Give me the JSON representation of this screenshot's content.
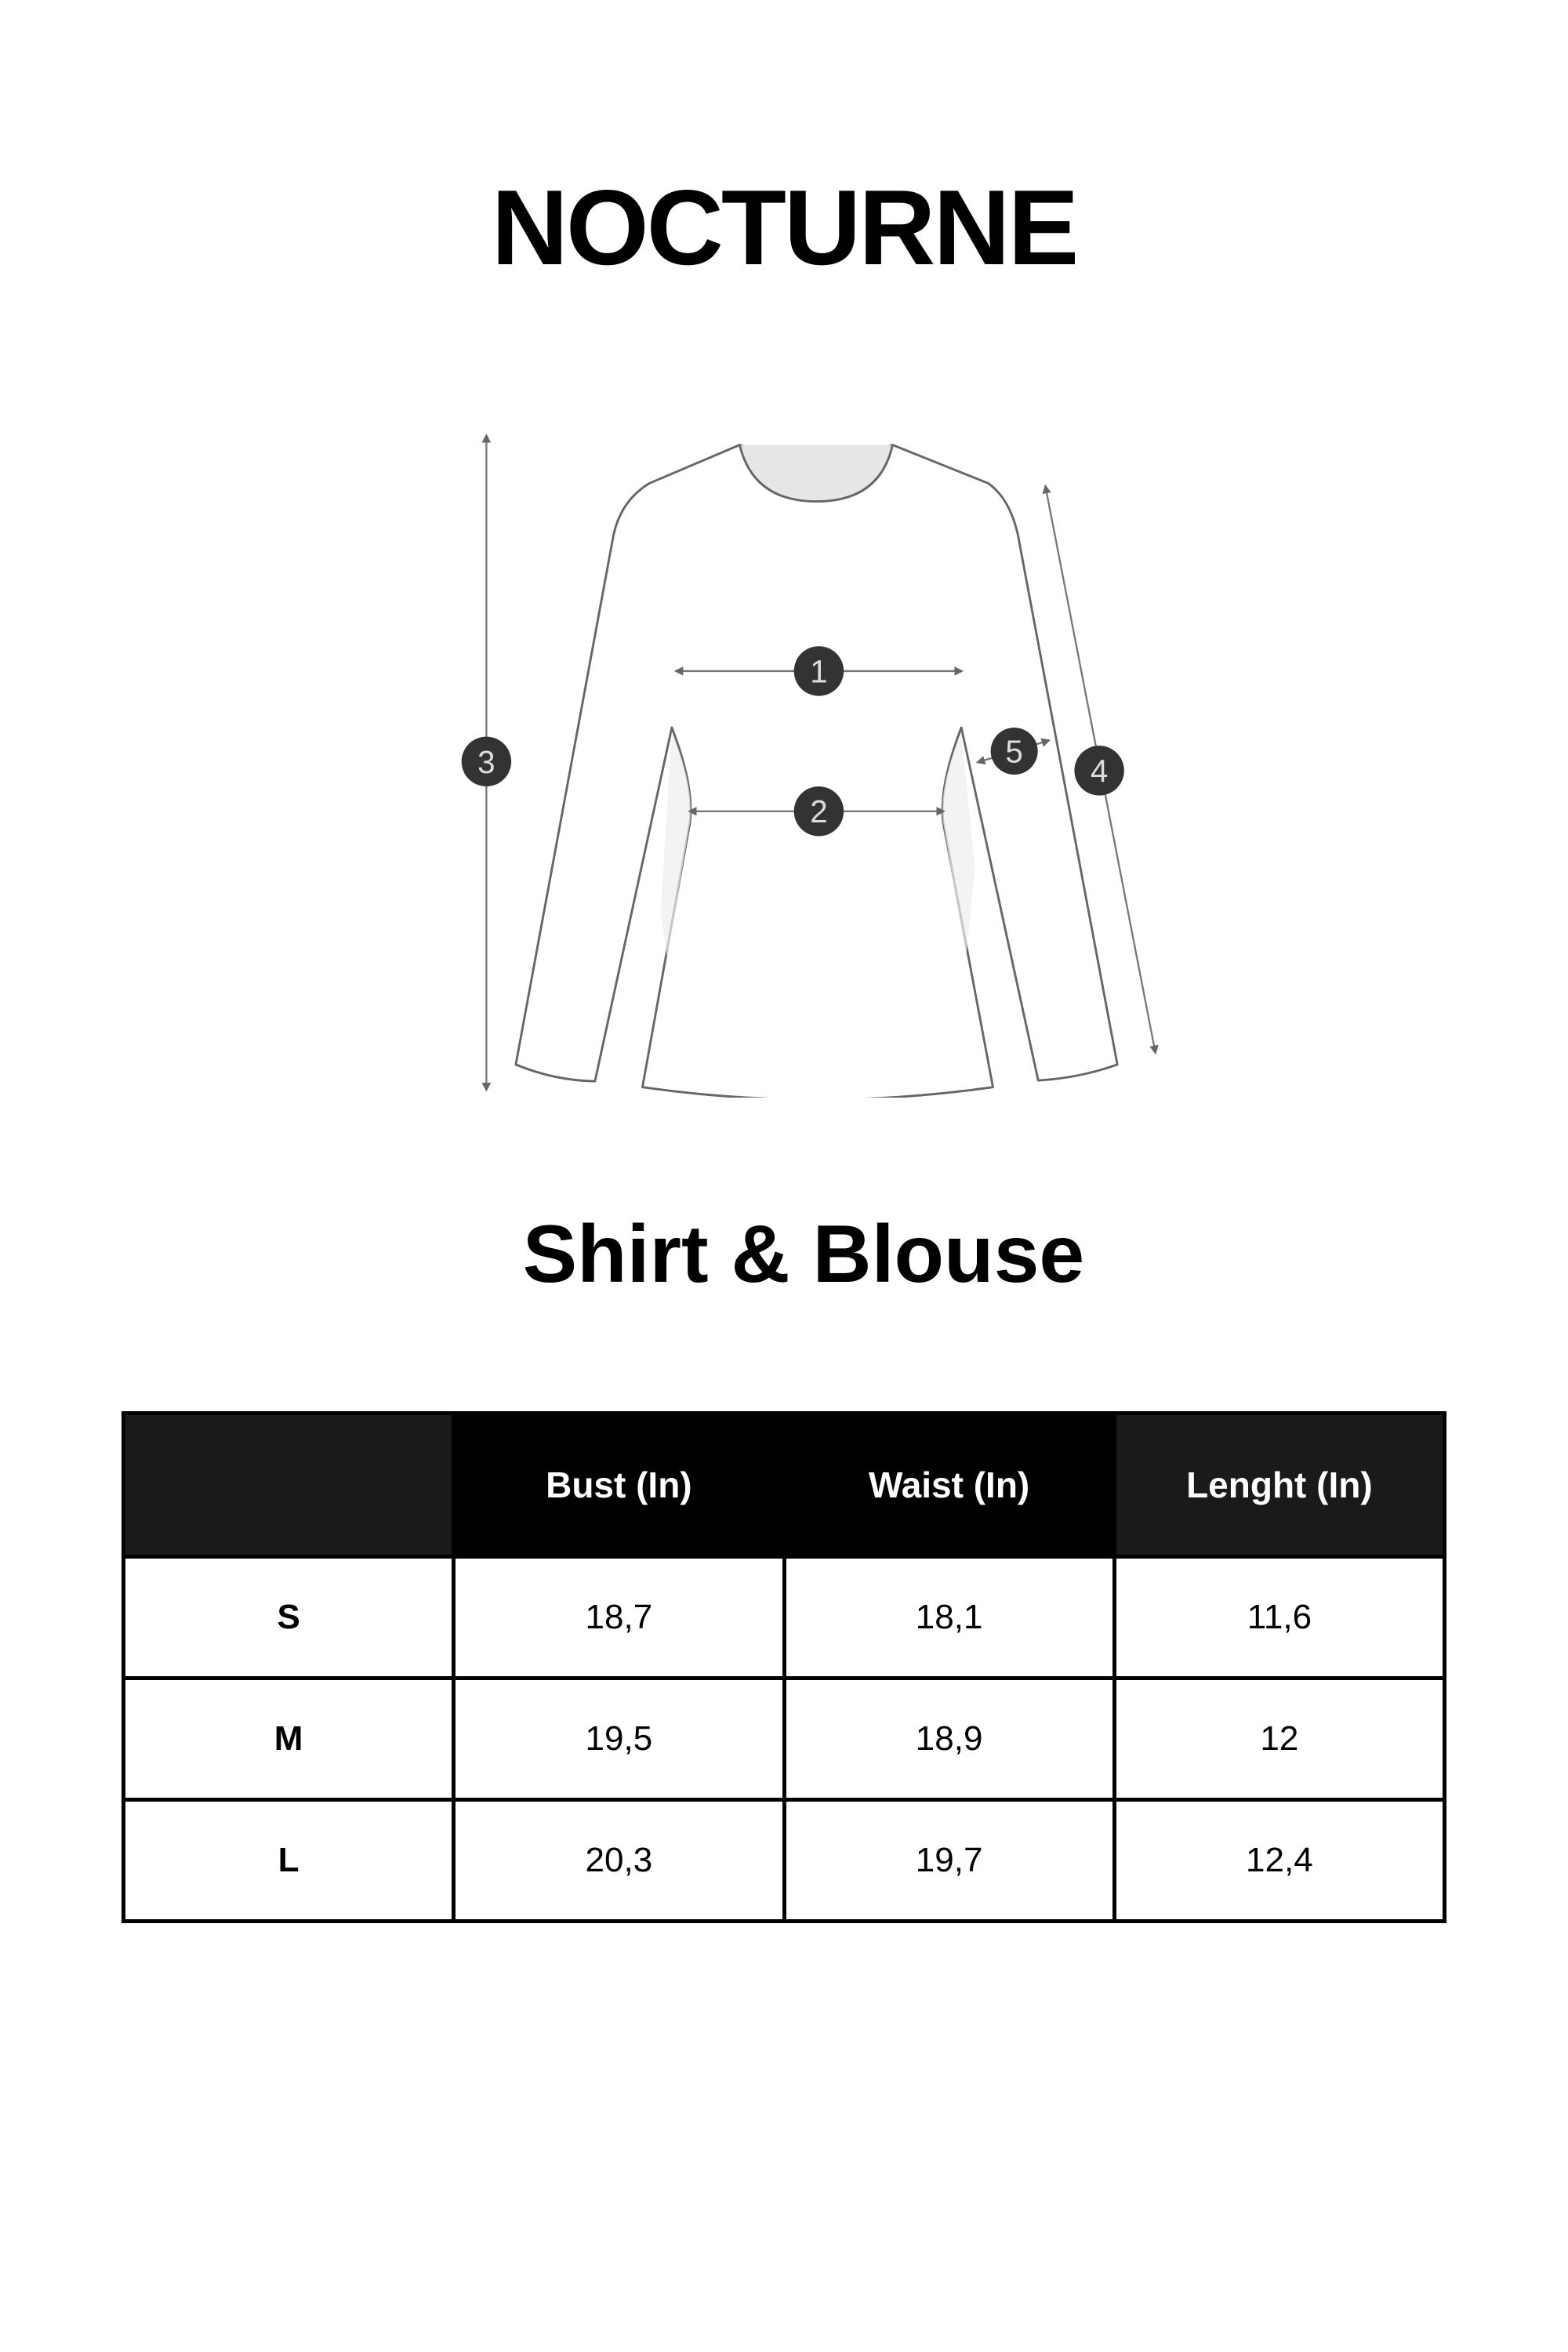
{
  "brand": "NOCTURNE",
  "diagram": {
    "markers": [
      "1",
      "2",
      "3",
      "4",
      "5"
    ],
    "line_color": "#777777",
    "marker_color": "#333333"
  },
  "subtitle": "Shirt & Blouse",
  "table": {
    "headers": [
      "",
      "Bust (In)",
      "Waist (In)",
      "Lenght (In)"
    ],
    "rows": [
      [
        "S",
        "18,7",
        "18,1",
        "11,6"
      ],
      [
        "M",
        "19,5",
        "18,9",
        "12"
      ],
      [
        "L",
        "20,3",
        "19,7",
        "12,4"
      ]
    ]
  }
}
